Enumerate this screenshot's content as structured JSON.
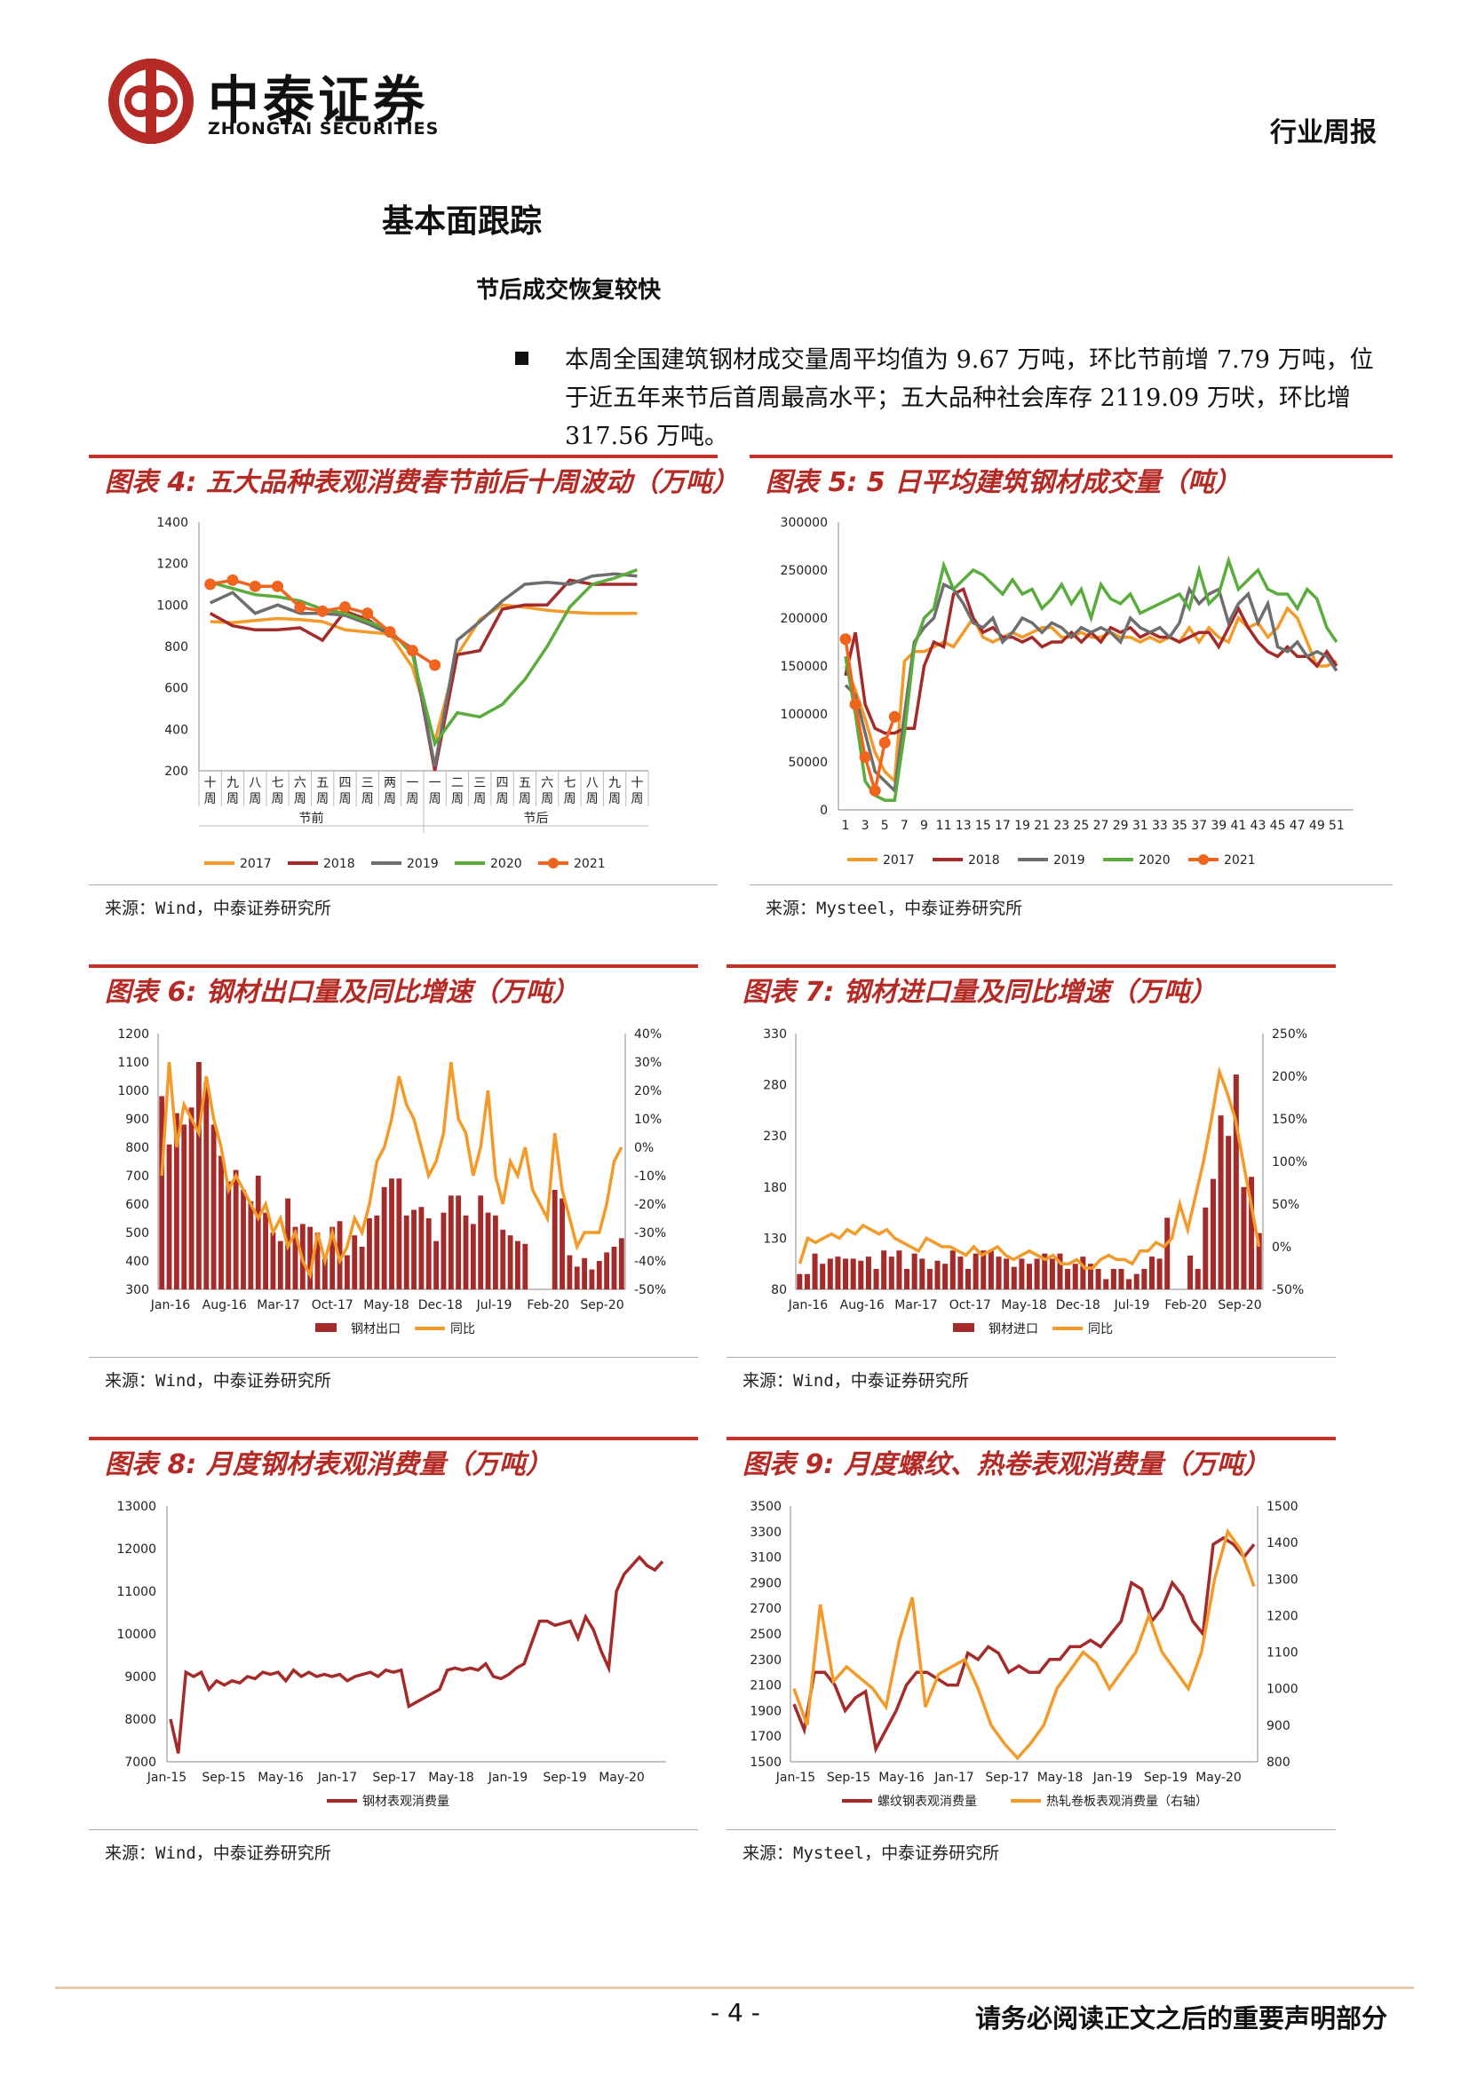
{
  "header": {
    "company_cn": "中泰证券",
    "company_en": "ZHONGTAI SECURITIES",
    "report_type": "行业周报"
  },
  "section_title": "基本面跟踪",
  "sub_title": "节后成交恢复较快",
  "paragraph": "本周全国建筑钢材成交量周平均值为 9.67 万吨，环比节前增 7.79 万吨，位于近五年来节后首周最高水平；五大品种社会库存 2119.09 万吠，环比增 317.56 万吨。",
  "panels": {
    "p4": {
      "title": "图表 4: 五大品种表观消费春节前后十周波动（万吨）",
      "source": "来源：Wind，中泰证券研究所"
    },
    "p5": {
      "title": "图表 5: 5 日平均建筑钢材成交量（吨）",
      "source": "来源：Mysteel，中泰证券研究所"
    },
    "p6": {
      "title": "图表 6: 钢材出口量及同比增速（万吨）",
      "source": "来源：Wind，中泰证券研究所"
    },
    "p7": {
      "title": "图表 7: 钢材进口量及同比增速（万吨）",
      "source": "来源：Wind，中泰证券研究所"
    },
    "p8": {
      "title": "图表 8: 月度钢材表观消费量（万吨）",
      "source": "来源：Wind，中泰证券研究所"
    },
    "p9": {
      "title": "图表 9: 月度螺纹、热卷表观消费量（万吨）",
      "source": "来源：Mysteel，中泰证券研究所"
    }
  },
  "footer": {
    "page": "- 4 -",
    "disclaimer": "请务必阅读正文之后的重要声明部分"
  },
  "colors": {
    "accent": "#c4322a",
    "y2017": "#f39a29",
    "y2018": "#a52a2a",
    "y2019": "#6e6e6e",
    "y2020": "#5aac3c",
    "y2021": "#f0641e"
  },
  "chart_data": [
    {
      "id": "p4",
      "type": "line",
      "categories": [
        "十周",
        "九周",
        "八周",
        "七周",
        "六周",
        "五周",
        "四周",
        "三周",
        "两周",
        "一周",
        "一周",
        "二周",
        "三周",
        "四周",
        "五周",
        "六周",
        "七周",
        "八周",
        "九周",
        "十周"
      ],
      "group_labels": [
        "节前",
        "节后"
      ],
      "ylim": [
        200,
        1400
      ],
      "yticks": [
        200,
        400,
        600,
        800,
        1000,
        1200,
        1400
      ],
      "series": [
        {
          "name": "2017",
          "color": "#f39a29",
          "values": [
            920,
            915,
            925,
            935,
            930,
            920,
            880,
            870,
            860,
            700,
            340,
            760,
            930,
            1000,
            990,
            975,
            965,
            960,
            960,
            960
          ]
        },
        {
          "name": "2018",
          "color": "#a52a2a",
          "values": [
            960,
            900,
            880,
            880,
            890,
            830,
            970,
            930,
            860,
            790,
            200,
            760,
            780,
            980,
            1000,
            1000,
            1120,
            1100,
            1100,
            1100
          ]
        },
        {
          "name": "2019",
          "color": "#6e6e6e",
          "values": [
            1010,
            1060,
            960,
            1000,
            960,
            960,
            950,
            910,
            860,
            790,
            220,
            830,
            920,
            1020,
            1100,
            1110,
            1100,
            1140,
            1150,
            1140
          ]
        },
        {
          "name": "2020",
          "color": "#5aac3c",
          "values": [
            1110,
            1080,
            1050,
            1040,
            1020,
            980,
            960,
            920,
            880,
            760,
            330,
            480,
            460,
            520,
            640,
            800,
            990,
            1100,
            1130,
            1170
          ]
        },
        {
          "name": "2021",
          "color": "#f0641e",
          "values": [
            1100,
            1120,
            1090,
            1090,
            null,
            980,
            980,
            960,
            870,
            780,
            720,
            null,
            null,
            null,
            null,
            null,
            null,
            null,
            null,
            null
          ]
        }
      ],
      "p2021_fix": [
        1100,
        1120,
        1090,
        1090,
        990,
        970,
        990,
        960,
        870,
        780,
        710
      ]
    },
    {
      "id": "p5",
      "type": "line",
      "x_ticks": [
        1,
        3,
        5,
        7,
        9,
        11,
        13,
        15,
        17,
        19,
        21,
        23,
        25,
        27,
        29,
        31,
        33,
        35,
        37,
        39,
        41,
        43,
        45,
        47,
        49,
        51
      ],
      "ylim": [
        0,
        300000
      ],
      "yticks": [
        0,
        50000,
        100000,
        150000,
        200000,
        250000,
        300000
      ],
      "series": [
        {
          "name": "2017",
          "color": "#f39a29",
          "values": [
            150000,
            125000,
            95000,
            60000,
            40000,
            30000,
            155000,
            165000,
            165000,
            170000,
            175000,
            170000,
            185000,
            200000,
            180000,
            175000,
            180000,
            185000,
            180000,
            185000,
            190000,
            190000,
            180000,
            180000,
            185000,
            180000,
            180000,
            185000,
            180000,
            180000,
            175000,
            180000,
            175000,
            180000,
            175000,
            190000,
            175000,
            190000,
            180000,
            175000,
            200000,
            190000,
            195000,
            180000,
            190000,
            210000,
            200000,
            175000,
            150000,
            150000,
            155000
          ]
        },
        {
          "name": "2018",
          "color": "#a52a2a",
          "values": [
            140000,
            185000,
            110000,
            85000,
            80000,
            80000,
            85000,
            85000,
            150000,
            175000,
            170000,
            225000,
            230000,
            200000,
            185000,
            190000,
            180000,
            180000,
            175000,
            180000,
            170000,
            175000,
            175000,
            185000,
            175000,
            185000,
            175000,
            190000,
            185000,
            190000,
            180000,
            185000,
            180000,
            180000,
            175000,
            180000,
            185000,
            185000,
            170000,
            190000,
            210000,
            190000,
            175000,
            165000,
            160000,
            170000,
            160000,
            160000,
            150000,
            165000,
            150000
          ]
        },
        {
          "name": "2019",
          "color": "#6e6e6e",
          "values": [
            130000,
            120000,
            80000,
            40000,
            30000,
            20000,
            100000,
            175000,
            190000,
            200000,
            235000,
            230000,
            215000,
            195000,
            190000,
            200000,
            175000,
            185000,
            200000,
            195000,
            185000,
            195000,
            190000,
            180000,
            190000,
            185000,
            190000,
            185000,
            175000,
            200000,
            190000,
            185000,
            190000,
            180000,
            195000,
            230000,
            215000,
            225000,
            230000,
            195000,
            215000,
            225000,
            195000,
            215000,
            170000,
            165000,
            175000,
            160000,
            165000,
            160000,
            145000
          ]
        },
        {
          "name": "2020",
          "color": "#5aac3c",
          "values": [
            160000,
            100000,
            30000,
            15000,
            10000,
            10000,
            80000,
            170000,
            200000,
            210000,
            255000,
            230000,
            240000,
            250000,
            245000,
            235000,
            225000,
            240000,
            225000,
            230000,
            210000,
            220000,
            235000,
            215000,
            230000,
            200000,
            235000,
            220000,
            215000,
            225000,
            205000,
            210000,
            215000,
            220000,
            225000,
            210000,
            250000,
            215000,
            225000,
            260000,
            230000,
            240000,
            250000,
            230000,
            225000,
            225000,
            210000,
            230000,
            220000,
            190000,
            175000
          ]
        },
        {
          "name": "2021",
          "color": "#f0641e",
          "values": [
            178000,
            110000,
            55000,
            20000,
            70000,
            97000
          ]
        }
      ]
    },
    {
      "id": "p6",
      "type": "bar+line",
      "x_labels": [
        "Jan-16",
        "Aug-16",
        "Mar-17",
        "Oct-17",
        "May-18",
        "Dec-18",
        "Jul-19",
        "Feb-20",
        "Sep-20"
      ],
      "ylim": [
        300,
        1200
      ],
      "yticks": [
        300,
        400,
        500,
        600,
        700,
        800,
        900,
        1000,
        1100,
        1200
      ],
      "y2lim": [
        -50,
        40
      ],
      "y2ticks": [
        "-50%",
        "-40%",
        "-30%",
        "-20%",
        "-10%",
        "0%",
        "10%",
        "20%",
        "30%",
        "40%"
      ],
      "series": [
        {
          "name": "钢材出口",
          "color": "#a52a2a",
          "values": [
            980,
            810,
            920,
            880,
            940,
            1100,
            1030,
            880,
            770,
            680,
            720,
            650,
            610,
            700,
            570,
            500,
            470,
            620,
            520,
            530,
            520,
            500,
            410,
            520,
            540,
            420,
            490,
            450,
            550,
            560,
            660,
            690,
            690,
            560,
            580,
            590,
            550,
            470,
            570,
            630,
            630,
            560,
            530,
            630,
            570,
            560,
            510,
            490,
            470,
            460,
            null,
            null,
            null,
            650,
            620,
            420,
            380,
            410,
            370,
            400,
            430,
            450,
            480
          ]
        },
        {
          "name": "同比",
          "color": "#f39a29",
          "values": [
            -10,
            30,
            0,
            15,
            10,
            5,
            25,
            10,
            0,
            -15,
            -10,
            -15,
            -20,
            -25,
            -20,
            -30,
            -25,
            -35,
            -30,
            -40,
            -45,
            -30,
            -40,
            -30,
            -40,
            -35,
            -25,
            -30,
            -20,
            -5,
            0,
            10,
            25,
            15,
            10,
            0,
            -10,
            -5,
            5,
            30,
            10,
            5,
            -10,
            0,
            20,
            -10,
            -20,
            -5,
            -10,
            0,
            -15,
            -20,
            -25,
            5,
            -15,
            -25,
            -35,
            -30,
            -30,
            -30,
            -20,
            -5,
            0
          ]
        }
      ]
    },
    {
      "id": "p7",
      "type": "bar+line",
      "x_labels": [
        "Jan-16",
        "Aug-16",
        "Mar-17",
        "Oct-17",
        "May-18",
        "Dec-18",
        "Jul-19",
        "Feb-20",
        "Sep-20"
      ],
      "ylim": [
        80,
        330
      ],
      "yticks": [
        80,
        130,
        180,
        230,
        280,
        330
      ],
      "y2lim": [
        -50,
        250
      ],
      "y2ticks": [
        "-50%",
        "0%",
        "50%",
        "100%",
        "150%",
        "200%",
        "250%"
      ],
      "series": [
        {
          "name": "钢材进口",
          "color": "#a52a2a",
          "values": [
            95,
            95,
            115,
            105,
            110,
            112,
            110,
            110,
            108,
            112,
            100,
            118,
            112,
            118,
            100,
            115,
            110,
            100,
            108,
            105,
            118,
            112,
            100,
            115,
            118,
            118,
            112,
            110,
            102,
            110,
            105,
            110,
            115,
            110,
            115,
            100,
            105,
            112,
            105,
            100,
            90,
            100,
            100,
            90,
            95,
            100,
            112,
            110,
            150,
            null,
            null,
            113,
            100,
            160,
            188,
            250,
            230,
            290,
            180,
            190,
            135
          ]
        },
        {
          "name": "同比",
          "color": "#f39a29",
          "values": [
            -20,
            10,
            5,
            10,
            15,
            10,
            20,
            15,
            25,
            20,
            15,
            20,
            10,
            5,
            0,
            -5,
            10,
            5,
            0,
            0,
            -5,
            -10,
            0,
            -10,
            -5,
            0,
            -10,
            -15,
            -10,
            -5,
            -10,
            -15,
            -10,
            -20,
            -20,
            -15,
            -25,
            -25,
            -15,
            -10,
            -15,
            -15,
            -20,
            -5,
            -5,
            5,
            0,
            10,
            50,
            20,
            60,
            100,
            150,
            205,
            180,
            150,
            100,
            50,
            0
          ]
        }
      ]
    },
    {
      "id": "p8",
      "type": "line",
      "x_labels": [
        "Jan-15",
        "Sep-15",
        "May-16",
        "Jan-17",
        "Sep-17",
        "May-18",
        "Jan-19",
        "Sep-19",
        "May-20"
      ],
      "ylim": [
        7000,
        13000
      ],
      "yticks": [
        7000,
        8000,
        9000,
        10000,
        11000,
        12000,
        13000
      ],
      "series": [
        {
          "name": "钢材表观消费量",
          "color": "#a52a2a",
          "values": [
            8000,
            7200,
            9100,
            9000,
            9100,
            8700,
            8900,
            8800,
            8900,
            8850,
            9000,
            8950,
            9100,
            9050,
            9100,
            8900,
            9150,
            9000,
            9100,
            9000,
            9050,
            9000,
            9050,
            8900,
            9000,
            9050,
            9100,
            9000,
            9150,
            9100,
            9150,
            8300,
            8400,
            8500,
            8600,
            8700,
            9150,
            9200,
            9150,
            9200,
            9150,
            9300,
            9000,
            8950,
            9050,
            9200,
            9300,
            9800,
            10300,
            10300,
            10200,
            10250,
            10300,
            9900,
            10400,
            10100,
            9600,
            9200,
            11000,
            11400,
            11600,
            11800,
            11600,
            11500,
            11700
          ]
        }
      ]
    },
    {
      "id": "p9",
      "type": "line",
      "x_labels": [
        "Jan-15",
        "Sep-15",
        "May-16",
        "Jan-17",
        "Sep-17",
        "May-18",
        "Jan-19",
        "Sep-19",
        "May-20"
      ],
      "ylim": [
        1500,
        3500
      ],
      "yticks": [
        1500,
        1700,
        1900,
        2100,
        2300,
        2500,
        2700,
        2900,
        3100,
        3300,
        3500
      ],
      "y2lim": [
        800,
        1500
      ],
      "y2ticks": [
        800,
        900,
        1000,
        1100,
        1200,
        1300,
        1400,
        1500
      ],
      "series": [
        {
          "name": "螺纹钢表观消费量",
          "color": "#a52a2a",
          "values": [
            1950,
            1750,
            2200,
            2200,
            2100,
            1900,
            2000,
            2050,
            1600,
            1750,
            1900,
            2100,
            2200,
            2200,
            2150,
            2100,
            2100,
            2350,
            2300,
            2400,
            2350,
            2200,
            2250,
            2200,
            2200,
            2300,
            2300,
            2400,
            2400,
            2450,
            2400,
            2500,
            2600,
            2900,
            2850,
            2600,
            2700,
            2900,
            2800,
            2600,
            2500,
            3200,
            3250,
            3200,
            3100,
            3200
          ]
        },
        {
          "name": "热轧卷板表观消费量（右轴）",
          "color": "#f39a29",
          "values": [
            1000,
            900,
            1230,
            1020,
            1060,
            1030,
            1000,
            950,
            1130,
            1250,
            950,
            1040,
            1060,
            1080,
            1000,
            900,
            850,
            810,
            850,
            900,
            1000,
            1050,
            1100,
            1070,
            1000,
            1050,
            1100,
            1200,
            1100,
            1050,
            1000,
            1100,
            1300,
            1430,
            1380,
            1280
          ]
        }
      ]
    }
  ]
}
